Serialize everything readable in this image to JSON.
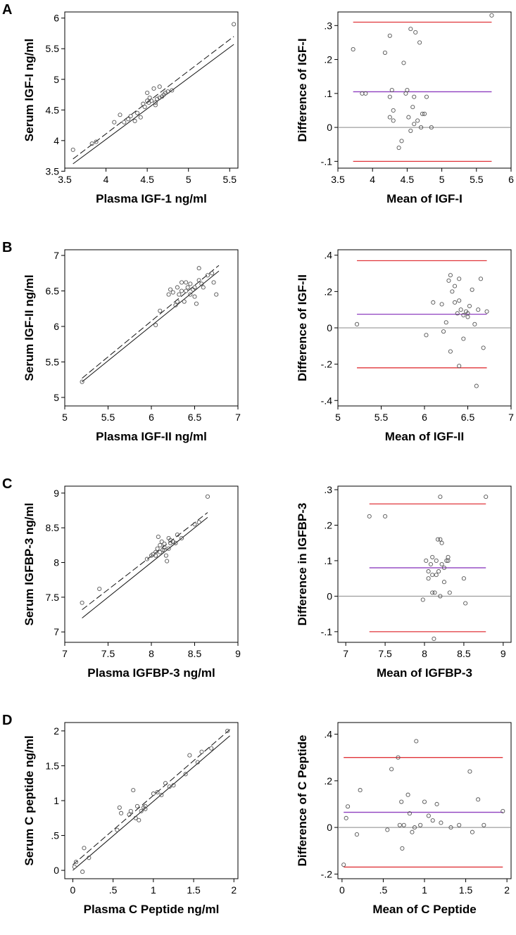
{
  "chart_data": [
    {
      "type": "scatter",
      "panel": "A",
      "xlabel": "Plasma IGF-1 ng/ml",
      "ylabel": "Serum IGF-I ng/ml",
      "xlim": [
        3.5,
        5.6
      ],
      "ylim": [
        3.55,
        6.1
      ],
      "xticks": [
        "3.5",
        "4",
        "4.5",
        "5",
        "5.5"
      ],
      "xtick_values": [
        3.5,
        4,
        4.5,
        5,
        5.5
      ],
      "yticks": [
        "3.5",
        "4",
        "4.5",
        "5",
        "5.5",
        "6"
      ],
      "ytick_values": [
        3.5,
        4,
        4.5,
        5,
        5.5,
        6
      ],
      "x": [
        3.6,
        3.83,
        3.88,
        4.1,
        4.17,
        4.22,
        4.27,
        4.3,
        4.35,
        4.38,
        4.42,
        4.45,
        4.47,
        4.5,
        4.52,
        4.53,
        4.55,
        4.58,
        4.6,
        4.62,
        4.65,
        4.68,
        4.7,
        4.72,
        4.75,
        4.5,
        4.6,
        4.65,
        4.8,
        5.55
      ],
      "y": [
        3.85,
        3.95,
        3.98,
        4.3,
        4.42,
        4.3,
        4.35,
        4.4,
        4.32,
        4.45,
        4.38,
        4.6,
        4.55,
        4.65,
        4.62,
        4.7,
        4.65,
        4.85,
        4.62,
        4.68,
        4.7,
        4.72,
        4.75,
        4.78,
        4.8,
        4.78,
        4.58,
        4.88,
        4.82,
        5.9
      ],
      "fit_solid": [
        [
          3.6,
          3.62
        ],
        [
          5.55,
          5.57
        ]
      ],
      "fit_dashed": [
        [
          3.6,
          3.7
        ],
        [
          5.55,
          5.7
        ]
      ]
    },
    {
      "type": "scatter",
      "panel": "A",
      "xlabel": "Mean of IGF-I",
      "ylabel": "Difference of IGF-I",
      "xlim": [
        3.5,
        6
      ],
      "ylim": [
        -0.12,
        0.34
      ],
      "xticks": [
        "3.5",
        "4",
        "4.5",
        "5",
        "5.5",
        "6"
      ],
      "xtick_values": [
        3.5,
        4,
        4.5,
        5,
        5.5,
        6
      ],
      "yticks": [
        "-.1",
        "0",
        ".1",
        ".2",
        ".3"
      ],
      "ytick_values": [
        -0.1,
        0,
        0.1,
        0.2,
        0.3
      ],
      "x": [
        3.72,
        3.85,
        3.9,
        4.18,
        4.25,
        4.28,
        4.3,
        4.25,
        4.3,
        4.38,
        4.42,
        4.45,
        4.48,
        4.5,
        4.52,
        4.55,
        4.55,
        4.58,
        4.6,
        4.62,
        4.65,
        4.68,
        4.7,
        4.72,
        4.75,
        4.78,
        4.85,
        5.72,
        4.25,
        4.6
      ],
      "y": [
        0.23,
        0.1,
        0.1,
        0.22,
        0.27,
        0.11,
        0.05,
        0.03,
        0.02,
        -0.06,
        -0.04,
        0.19,
        0.1,
        0.11,
        0.03,
        0.29,
        -0.01,
        0.06,
        0.09,
        0.28,
        0.02,
        0.25,
        0.0,
        0.04,
        0.04,
        0.09,
        0.0,
        0.33,
        0.09,
        0.01
      ],
      "mean": 0.105,
      "upper_loa": 0.31,
      "lower_loa": -0.1
    },
    {
      "type": "scatter",
      "panel": "B",
      "xlabel": "Plasma IGF-II ng/ml",
      "ylabel": "Serum IGF-II ng/ml",
      "xlim": [
        5,
        7
      ],
      "ylim": [
        4.88,
        7.08
      ],
      "xticks": [
        "5",
        "5.5",
        "6",
        "6.5",
        "7"
      ],
      "xtick_values": [
        5,
        5.5,
        6,
        6.5,
        7
      ],
      "yticks": [
        "5",
        "5.5",
        "6",
        "6.5",
        "7"
      ],
      "ytick_values": [
        5,
        5.5,
        6,
        6.5,
        7
      ],
      "x": [
        5.2,
        6.05,
        6.1,
        6.2,
        6.22,
        6.25,
        6.28,
        6.3,
        6.32,
        6.35,
        6.38,
        6.4,
        6.42,
        6.45,
        6.48,
        6.5,
        6.52,
        6.55,
        6.58,
        6.6,
        6.65,
        6.7,
        6.72,
        6.75,
        6.3,
        6.4,
        6.5,
        6.55,
        6.35,
        6.45
      ],
      "y": [
        5.22,
        6.02,
        6.22,
        6.45,
        6.52,
        6.48,
        6.3,
        6.55,
        6.45,
        6.5,
        6.35,
        6.62,
        6.55,
        6.45,
        6.52,
        6.42,
        6.32,
        6.82,
        6.6,
        6.55,
        6.72,
        6.75,
        6.62,
        6.45,
        6.35,
        6.5,
        6.55,
        6.65,
        6.62,
        6.6
      ],
      "fit_solid": [
        [
          5.2,
          5.22
        ],
        [
          6.78,
          6.78
        ]
      ],
      "fit_dashed": [
        [
          5.2,
          5.27
        ],
        [
          6.78,
          6.86
        ]
      ]
    },
    {
      "type": "scatter",
      "panel": "B",
      "xlabel": "Mean of IGF-II",
      "ylabel": "Difference of IGF-II",
      "xlim": [
        5,
        7
      ],
      "ylim": [
        -0.43,
        0.43
      ],
      "xticks": [
        "5",
        "5.5",
        "6",
        "6.5",
        "7"
      ],
      "xtick_values": [
        5,
        5.5,
        6,
        6.5,
        7
      ],
      "yticks": [
        "-.4",
        "-.2",
        "0",
        ".2",
        ".4"
      ],
      "ytick_values": [
        -0.4,
        -0.2,
        0,
        0.2,
        0.4
      ],
      "x": [
        5.22,
        6.02,
        6.1,
        6.2,
        6.22,
        6.25,
        6.28,
        6.3,
        6.32,
        6.35,
        6.35,
        6.38,
        6.4,
        6.4,
        6.42,
        6.45,
        6.45,
        6.48,
        6.5,
        6.5,
        6.52,
        6.55,
        6.58,
        6.6,
        6.62,
        6.65,
        6.68,
        6.72,
        6.4,
        6.3
      ],
      "y": [
        0.02,
        -0.04,
        0.14,
        0.13,
        -0.02,
        0.03,
        0.26,
        0.29,
        0.2,
        0.14,
        0.23,
        0.08,
        0.15,
        0.27,
        0.1,
        0.07,
        -0.06,
        0.09,
        0.06,
        0.08,
        0.12,
        0.21,
        0.02,
        -0.32,
        0.1,
        0.27,
        -0.11,
        0.09,
        -0.21,
        -0.13
      ],
      "mean": 0.075,
      "upper_loa": 0.37,
      "lower_loa": -0.22
    },
    {
      "type": "scatter",
      "panel": "C",
      "xlabel": "Plasma IGFBP-3 ng/ml",
      "ylabel": "Serum IGFBP-3 ng/ml",
      "xlim": [
        7,
        9
      ],
      "ylim": [
        6.85,
        9.1
      ],
      "xticks": [
        "7",
        "7.5",
        "8",
        "8.5",
        "9"
      ],
      "xtick_values": [
        7,
        7.5,
        8,
        8.5,
        9
      ],
      "yticks": [
        "7",
        "7.5",
        "8",
        "8.5",
        "9"
      ],
      "ytick_values": [
        7,
        7.5,
        8,
        8.5,
        9
      ],
      "x": [
        7.2,
        7.4,
        7.95,
        8.0,
        8.02,
        8.05,
        8.07,
        8.08,
        8.1,
        8.12,
        8.13,
        8.15,
        8.17,
        8.18,
        8.2,
        8.22,
        8.25,
        8.28,
        8.3,
        8.35,
        8.1,
        8.15,
        8.2,
        8.25,
        8.5,
        8.55,
        8.65,
        8.05,
        8.15,
        8.22
      ],
      "y": [
        7.42,
        7.62,
        8.05,
        8.1,
        8.12,
        8.15,
        8.2,
        8.37,
        8.25,
        8.3,
        8.18,
        8.27,
        8.1,
        8.02,
        8.2,
        8.32,
        8.3,
        8.28,
        8.4,
        8.35,
        8.15,
        8.22,
        8.35,
        8.3,
        8.55,
        8.58,
        8.95,
        8.1,
        8.18,
        8.28
      ],
      "fit_solid": [
        [
          7.2,
          7.2
        ],
        [
          8.65,
          8.65
        ]
      ],
      "fit_dashed": [
        [
          7.2,
          7.32
        ],
        [
          8.65,
          8.72
        ]
      ]
    },
    {
      "type": "scatter",
      "panel": "C",
      "xlabel": "Mean of IGFBP-3",
      "ylabel": "Difference in IGFBP-3",
      "xlim": [
        6.9,
        9.1
      ],
      "ylim": [
        -0.13,
        0.31
      ],
      "xticks": [
        "7",
        "7.5",
        "8",
        "8.5",
        "9"
      ],
      "xtick_values": [
        7,
        7.5,
        8,
        8.5,
        9
      ],
      "yticks": [
        "-.1",
        "0",
        ".1",
        ".2",
        ".3"
      ],
      "ytick_values": [
        -0.1,
        0,
        0.1,
        0.2,
        0.3
      ],
      "x": [
        7.3,
        7.5,
        7.98,
        8.02,
        8.05,
        8.08,
        8.1,
        8.1,
        8.12,
        8.13,
        8.15,
        8.17,
        8.18,
        8.2,
        8.2,
        8.22,
        8.22,
        8.25,
        8.25,
        8.28,
        8.3,
        8.32,
        8.5,
        8.52,
        8.78,
        8.1,
        8.15,
        8.05,
        8.3,
        8.2
      ],
      "y": [
        0.225,
        0.225,
        -0.01,
        0.1,
        0.05,
        0.09,
        0.06,
        0.11,
        -0.12,
        0.01,
        0.06,
        0.16,
        0.07,
        0.28,
        0.16,
        0.15,
        0.09,
        0.08,
        0.04,
        0.1,
        0.11,
        0.01,
        0.05,
        -0.02,
        0.28,
        0.01,
        0.1,
        0.07,
        0.1,
        0.0
      ],
      "mean": 0.08,
      "upper_loa": 0.26,
      "lower_loa": -0.1
    },
    {
      "type": "scatter",
      "panel": "D",
      "xlabel": "Plasma C Peptide ng/ml",
      "ylabel": "Serum C peptide ng/ml",
      "xlim": [
        -0.1,
        2.05
      ],
      "ylim": [
        -0.12,
        2.12
      ],
      "xticks": [
        "0",
        ".5",
        "1",
        "1.5",
        "2"
      ],
      "xtick_values": [
        0,
        0.5,
        1,
        1.5,
        2
      ],
      "yticks": [
        "0",
        ".5",
        "1",
        "1.5",
        "2"
      ],
      "ytick_values": [
        0,
        0.5,
        1,
        1.5,
        2
      ],
      "x": [
        0.02,
        0.04,
        0.12,
        0.14,
        0.2,
        0.55,
        0.58,
        0.6,
        0.7,
        0.72,
        0.75,
        0.78,
        0.8,
        0.82,
        0.85,
        0.88,
        0.9,
        1.0,
        1.05,
        1.1,
        1.15,
        1.2,
        1.25,
        1.4,
        1.45,
        1.55,
        1.6,
        1.72,
        1.92,
        0.9
      ],
      "y": [
        0.05,
        0.12,
        -0.02,
        0.32,
        0.18,
        0.58,
        0.9,
        0.82,
        0.8,
        0.85,
        1.15,
        0.75,
        0.92,
        0.72,
        0.85,
        0.9,
        0.92,
        1.1,
        1.12,
        1.08,
        1.25,
        1.2,
        1.22,
        1.38,
        1.65,
        1.55,
        1.7,
        1.75,
        2.0,
        0.88
      ],
      "fit_solid": [
        [
          0.0,
          0.0
        ],
        [
          1.95,
          1.93
        ]
      ],
      "fit_dashed": [
        [
          0.0,
          0.08
        ],
        [
          1.95,
          2.02
        ]
      ]
    },
    {
      "type": "scatter",
      "panel": "D",
      "xlabel": "Mean of C Peptide",
      "ylabel": "Difference of C Peptide",
      "xlim": [
        -0.05,
        2.05
      ],
      "ylim": [
        -0.22,
        0.45
      ],
      "xticks": [
        "0",
        ".5",
        "1",
        "1.5",
        "2"
      ],
      "xtick_values": [
        0,
        0.5,
        1,
        1.5,
        2
      ],
      "yticks": [
        "-.2",
        "0",
        ".2",
        ".4"
      ],
      "ytick_values": [
        -0.2,
        0,
        0.2,
        0.4
      ],
      "x": [
        0.02,
        0.05,
        0.07,
        0.18,
        0.22,
        0.55,
        0.6,
        0.68,
        0.7,
        0.72,
        0.73,
        0.75,
        0.8,
        0.82,
        0.85,
        0.88,
        0.9,
        0.95,
        1.0,
        1.05,
        1.1,
        1.15,
        1.2,
        1.32,
        1.42,
        1.55,
        1.58,
        1.65,
        1.72,
        1.95
      ],
      "y": [
        -0.16,
        0.04,
        0.09,
        -0.03,
        0.16,
        -0.01,
        0.25,
        0.3,
        0.01,
        0.11,
        -0.09,
        0.01,
        0.14,
        0.06,
        -0.02,
        0.0,
        0.37,
        0.01,
        0.11,
        0.05,
        0.03,
        0.1,
        0.02,
        0.0,
        0.01,
        0.24,
        -0.02,
        0.12,
        0.01,
        0.07
      ],
      "mean": 0.065,
      "upper_loa": 0.3,
      "lower_loa": -0.17
    }
  ],
  "panels": [
    "A",
    "B",
    "C",
    "D"
  ],
  "colors": {
    "limits_of_agreement": "#e0353a",
    "mean_difference": "#8e3fbf",
    "zero_line": "#888888",
    "points": "#555555",
    "axes": "#000000"
  }
}
